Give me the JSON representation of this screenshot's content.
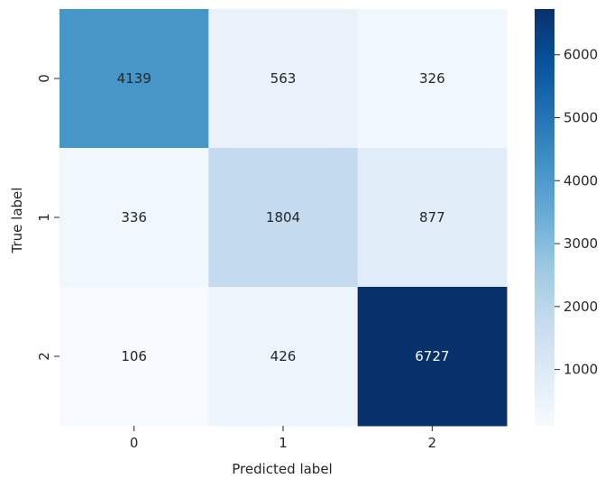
{
  "chart_data": {
    "type": "heatmap",
    "title": "",
    "xlabel": "Predicted label",
    "ylabel": "True label",
    "x_categories": [
      "0",
      "1",
      "2"
    ],
    "y_categories": [
      "0",
      "1",
      "2"
    ],
    "values": [
      [
        4139,
        563,
        326
      ],
      [
        336,
        1804,
        877
      ],
      [
        106,
        426,
        6727
      ]
    ],
    "colormap": "Blues",
    "color_range": [
      106,
      6727
    ],
    "colorbar_ticks": [
      1000,
      2000,
      3000,
      4000,
      5000,
      6000
    ],
    "grid": false,
    "legend": "colorbar-right"
  },
  "colors": {
    "blues_stops": [
      "#f7fbff",
      "#deebf7",
      "#c6dbef",
      "#9ecae1",
      "#6baed6",
      "#4292c6",
      "#2171b5",
      "#08519c",
      "#08306b"
    ],
    "text_dark": "#262626",
    "text_light": "#ffffff"
  }
}
